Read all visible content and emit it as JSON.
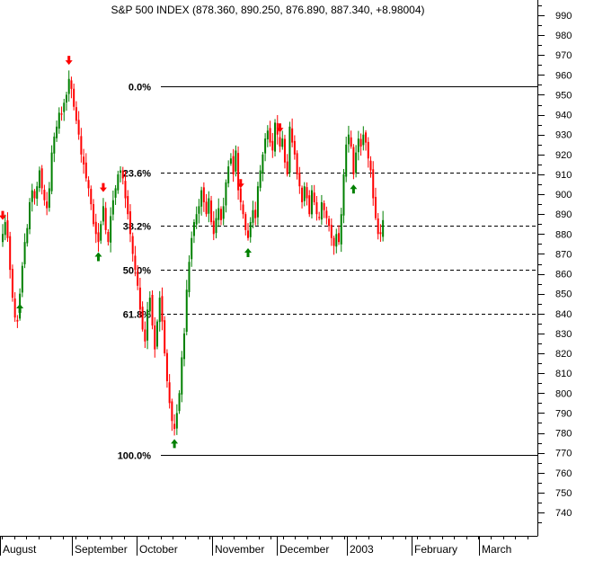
{
  "chart_data": {
    "type": "candlestick",
    "title": "S&P 500 INDEX (878.360, 890.250, 876.890, 887.340, +8.98004)",
    "ylim": [
      730,
      1000
    ],
    "y_ticks": [
      990,
      980,
      970,
      960,
      950,
      940,
      930,
      920,
      910,
      900,
      890,
      880,
      870,
      860,
      850,
      840,
      830,
      820,
      810,
      800,
      790,
      780,
      770,
      760,
      750,
      740
    ],
    "x_labels": [
      "August",
      "September",
      "October",
      "November",
      "December",
      "2003",
      "February",
      "March"
    ],
    "grid": false,
    "colors": {
      "up": "#008000",
      "down": "#ff0000",
      "axis": "#000000"
    },
    "fibonacci": [
      {
        "label": "0.0%",
        "value": 954.5,
        "style": "solid"
      },
      {
        "label": "23.6%",
        "value": 911.0,
        "style": "dashed"
      },
      {
        "label": "38.2%",
        "value": 884.0,
        "style": "dashed"
      },
      {
        "label": "50.0%",
        "value": 862.0,
        "style": "dashed"
      },
      {
        "label": "61.8%",
        "value": 840.0,
        "style": "dashed"
      },
      {
        "label": "100.0%",
        "value": 769.0,
        "style": "solid"
      }
    ],
    "closes": [
      880,
      886,
      878,
      862,
      848,
      838,
      836,
      850,
      864,
      876,
      883,
      896,
      902,
      898,
      904,
      912,
      903,
      897,
      893,
      903,
      921,
      929,
      934,
      941,
      940,
      946,
      950,
      958,
      953,
      944,
      937,
      930,
      920,
      915,
      908,
      903,
      895,
      885,
      880,
      876,
      885,
      894,
      882,
      876,
      889,
      897,
      903,
      910,
      912,
      908,
      898,
      890,
      880,
      870,
      862,
      854,
      842,
      832,
      826,
      842,
      848,
      834,
      822,
      836,
      848,
      836,
      820,
      806,
      795,
      786,
      782,
      790,
      800,
      818,
      830,
      852,
      866,
      878,
      886,
      890,
      894,
      902,
      896,
      890,
      898,
      886,
      880,
      888,
      893,
      887,
      894,
      906,
      914,
      918,
      910,
      922,
      902,
      896,
      890,
      882,
      878,
      886,
      892,
      888,
      904,
      912,
      920,
      928,
      932,
      926,
      922,
      936,
      930,
      924,
      928,
      916,
      910,
      934,
      926,
      920,
      910,
      904,
      896,
      904,
      898,
      890,
      902,
      896,
      890,
      888,
      896,
      892,
      888,
      884,
      878,
      874,
      880,
      876,
      890,
      910,
      925,
      930,
      924,
      910,
      921,
      928,
      924,
      930,
      926,
      918,
      912,
      898,
      888,
      880,
      880,
      887
    ],
    "signals": [
      {
        "index": 0,
        "direction": "down"
      },
      {
        "index": 7,
        "direction": "up"
      },
      {
        "index": 27,
        "direction": "down"
      },
      {
        "index": 39,
        "direction": "up"
      },
      {
        "index": 41,
        "direction": "down"
      },
      {
        "index": 70,
        "direction": "up"
      },
      {
        "index": 97,
        "direction": "down"
      },
      {
        "index": 100,
        "direction": "up"
      },
      {
        "index": 113,
        "direction": "down"
      },
      {
        "index": 143,
        "direction": "up"
      },
      {
        "index": 156,
        "direction": "down"
      }
    ]
  }
}
